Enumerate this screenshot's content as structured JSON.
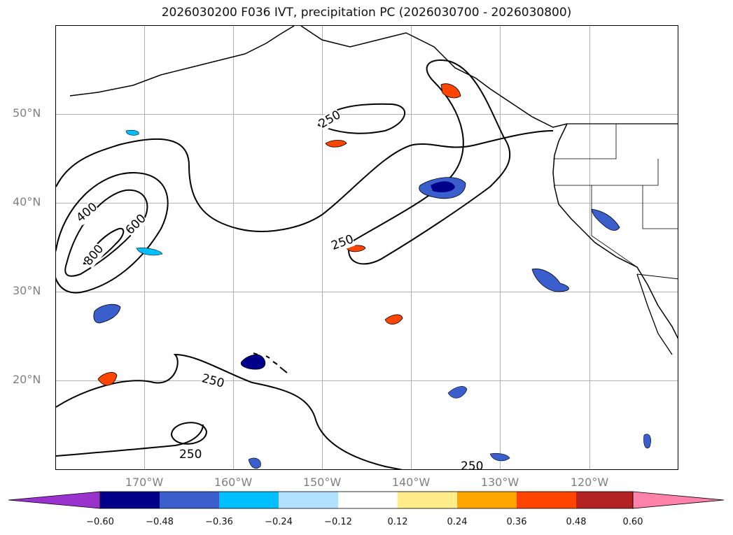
{
  "title": "2026030200 F036 IVT, precipitation PC (2026030700 - 2026030800)",
  "lat_labels": [
    "50°N",
    "40°N",
    "30°N",
    "20°N"
  ],
  "lon_labels": [
    "170°W",
    "160°W",
    "150°W",
    "140°W",
    "130°W",
    "120°W"
  ],
  "contour_labels": {
    "c250_north": "250",
    "c250_mid": "250",
    "c250_south": "250",
    "c250_bottom_left": "250",
    "c250_bottom": "250",
    "c400": "400",
    "c600": "600",
    "c800": "800"
  },
  "colorbar": {
    "ticks": [
      "−0.60",
      "−0.48",
      "−0.36",
      "−0.24",
      "−0.12",
      "0.12",
      "0.24",
      "0.36",
      "0.48",
      "0.60"
    ],
    "colors": [
      "#9a32cd",
      "#00008b",
      "#3a5fcd",
      "#00bfff",
      "#b0e2ff",
      "#ffffff",
      "#ffec8b",
      "#ffa500",
      "#ff4500",
      "#b22222",
      "#ff82ab"
    ]
  }
}
